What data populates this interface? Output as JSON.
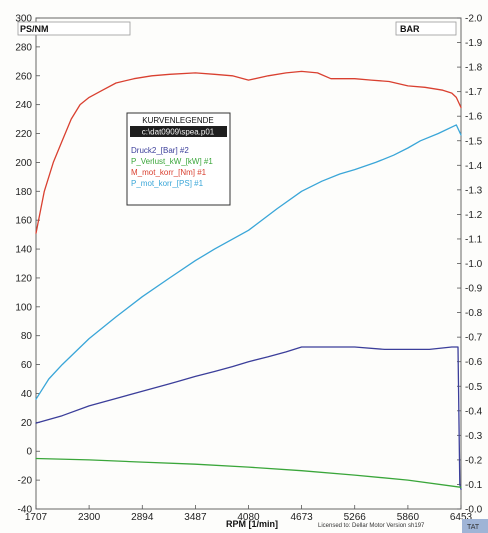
{
  "chart_data": {
    "type": "line",
    "left_axis_label": "PS/NM",
    "right_axis_label": "BAR",
    "xlabel": "RPM  [1/min]",
    "footer_note": "Licensed to: Dellar Motor   Version sh197",
    "corner_badge": "TAT",
    "x_ticks": [
      1707,
      2300,
      2894,
      3487,
      4080,
      4673,
      5266,
      5860,
      6453
    ],
    "xlim": [
      1707,
      6453
    ],
    "ylim_left": [
      -40,
      300
    ],
    "y_ticks_left": [
      300,
      280,
      260,
      240,
      220,
      200,
      180,
      160,
      140,
      120,
      100,
      80,
      60,
      40,
      20,
      0,
      -20,
      -40
    ],
    "ylim_right": [
      0.0,
      2.0
    ],
    "y_ticks_right": [
      "-2.0",
      "-1.9",
      "-1.8",
      "-1.7",
      "-1.6",
      "-1.5",
      "-1.4",
      "-1.3",
      "-1.2",
      "-1.1",
      "-1.0",
      "-0.9",
      "-0.8",
      "-0.7",
      "-0.6",
      "-0.5",
      "-0.4",
      "-0.3",
      "-0.2",
      "-0.1",
      "-0.0"
    ],
    "legend": {
      "title": "KURVENLEGENDE",
      "file": "c:\\dat0909\\spea.p01",
      "placement": "upper-left-center",
      "entries": [
        {
          "label": "Druck2_[Bar] #2",
          "color": "#3b3e9a"
        },
        {
          "label": "P_Verlust_kW_[kW] #1",
          "color": "#3aa63a"
        },
        {
          "label": "M_mot_korr_[Nm] #1",
          "color": "#d94030"
        },
        {
          "label": "P_mot_korr_[PS] #1",
          "color": "#3aa6d8"
        }
      ]
    },
    "series": [
      {
        "name": "M_mot_korr_[Nm] #1",
        "axis": "left",
        "color": "#d94030",
        "x": [
          1707,
          1800,
          1900,
          2000,
          2100,
          2200,
          2300,
          2450,
          2600,
          2800,
          3000,
          3200,
          3487,
          3700,
          3900,
          4080,
          4300,
          4500,
          4673,
          4850,
          5000,
          5266,
          5450,
          5650,
          5860,
          6050,
          6250,
          6350,
          6400,
          6453
        ],
        "values": [
          151,
          180,
          200,
          215,
          230,
          240,
          245,
          250,
          255,
          258,
          260,
          261,
          262,
          261,
          260,
          257,
          260,
          262,
          263,
          262,
          258,
          258,
          257,
          256,
          253,
          252,
          250,
          248,
          245,
          238
        ]
      },
      {
        "name": "P_mot_korr_[PS] #1",
        "axis": "left",
        "color": "#3aa6d8",
        "x": [
          1707,
          1850,
          2000,
          2300,
          2600,
          2894,
          3200,
          3487,
          3700,
          4080,
          4400,
          4673,
          4900,
          5100,
          5266,
          5500,
          5700,
          5860,
          6000,
          6200,
          6400,
          6453
        ],
        "values": [
          36,
          50,
          60,
          78,
          93,
          107,
          120,
          132,
          140,
          153,
          168,
          180,
          187,
          192,
          195,
          200,
          205,
          210,
          215,
          220,
          226,
          219
        ]
      },
      {
        "name": "Druck2_[Bar] #2",
        "axis": "right",
        "color": "#3b3e9a",
        "x": [
          1707,
          2000,
          2300,
          2600,
          2894,
          3200,
          3487,
          3700,
          3900,
          4080,
          4300,
          4500,
          4673,
          4900,
          5266,
          5600,
          5860,
          6100,
          6350,
          6420,
          6440,
          6453
        ],
        "values": [
          0.35,
          0.38,
          0.42,
          0.45,
          0.48,
          0.51,
          0.54,
          0.56,
          0.58,
          0.6,
          0.62,
          0.64,
          0.66,
          0.66,
          0.66,
          0.65,
          0.65,
          0.65,
          0.66,
          0.66,
          0.1,
          0.08
        ]
      },
      {
        "name": "P_Verlust_kW_[kW] #1",
        "axis": "left",
        "color": "#3aa63a",
        "x": [
          1707,
          2300,
          2894,
          3487,
          4080,
          4673,
          5266,
          5860,
          6453
        ],
        "values": [
          -5,
          -6,
          -7.5,
          -9,
          -11,
          -13.5,
          -16.5,
          -20,
          -25
        ]
      }
    ]
  }
}
